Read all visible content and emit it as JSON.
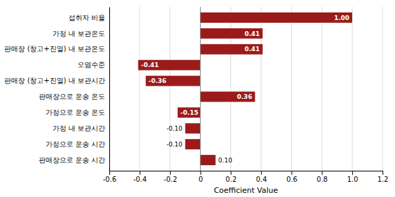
{
  "chart_data": {
    "type": "bar",
    "orientation": "horizontal",
    "categories": [
      "판매장으로 운송 시간",
      "가정으로 운송 시간",
      "가정 내 보관시간",
      "가정으로 운송 온도",
      "판매장으로 운송 온도",
      "판매장 (창고+진열) 내 보관시간",
      "오염수준",
      "판매장 (창고+진열) 내 보관온도",
      "가정 내 보관온도",
      "섭취자 비율"
    ],
    "values": [
      0.1,
      -0.1,
      -0.1,
      -0.15,
      0.36,
      -0.36,
      -0.41,
      0.41,
      0.41,
      1.0
    ],
    "value_labels": [
      "0.10",
      "-0.10",
      "-0.10",
      "-0.15",
      "0.36",
      "-0.36",
      "-0.41",
      "0.41",
      "0.41",
      "1.00"
    ],
    "data_labels": true,
    "color": "#9B1B1B",
    "xlabel": "Coefficient Value",
    "xlim": [
      -0.6,
      1.2
    ],
    "xticks": [
      -0.6,
      -0.4,
      -0.2,
      0.0,
      0.2,
      0.4,
      0.6,
      0.8,
      {
        "value": 1.0,
        "label": "1.0"
      },
      1.2
    ],
    "grid": true
  }
}
